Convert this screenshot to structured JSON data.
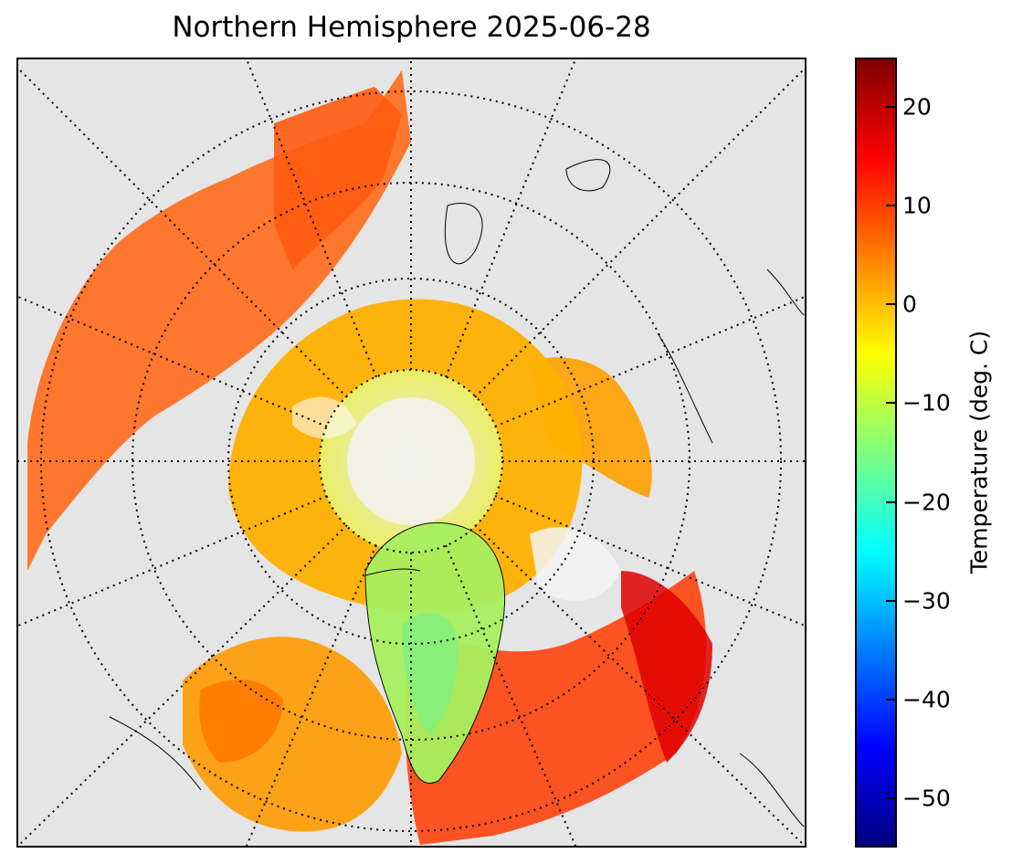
{
  "title": "Northern Hemisphere 2025-06-28",
  "colorbar": {
    "label": "Temperature (deg. C)",
    "min": -55,
    "max": 25,
    "ticks": [
      {
        "value": 20,
        "label": "20"
      },
      {
        "value": 10,
        "label": "10"
      },
      {
        "value": 0,
        "label": "0"
      },
      {
        "value": -10,
        "label": "−10"
      },
      {
        "value": -20,
        "label": "−20"
      },
      {
        "value": -30,
        "label": "−30"
      },
      {
        "value": -40,
        "label": "−40"
      },
      {
        "value": -50,
        "label": "−50"
      }
    ],
    "colors": [
      "#00007f",
      "#0000ff",
      "#007fff",
      "#00ffff",
      "#7fff7f",
      "#ffff00",
      "#ff7f00",
      "#ff0000",
      "#7f0000"
    ]
  },
  "map": {
    "projection": "north-polar-stereographic",
    "background_color": "#e5e5e5",
    "land_outline_color": "#000000",
    "graticule": "dotted"
  }
}
